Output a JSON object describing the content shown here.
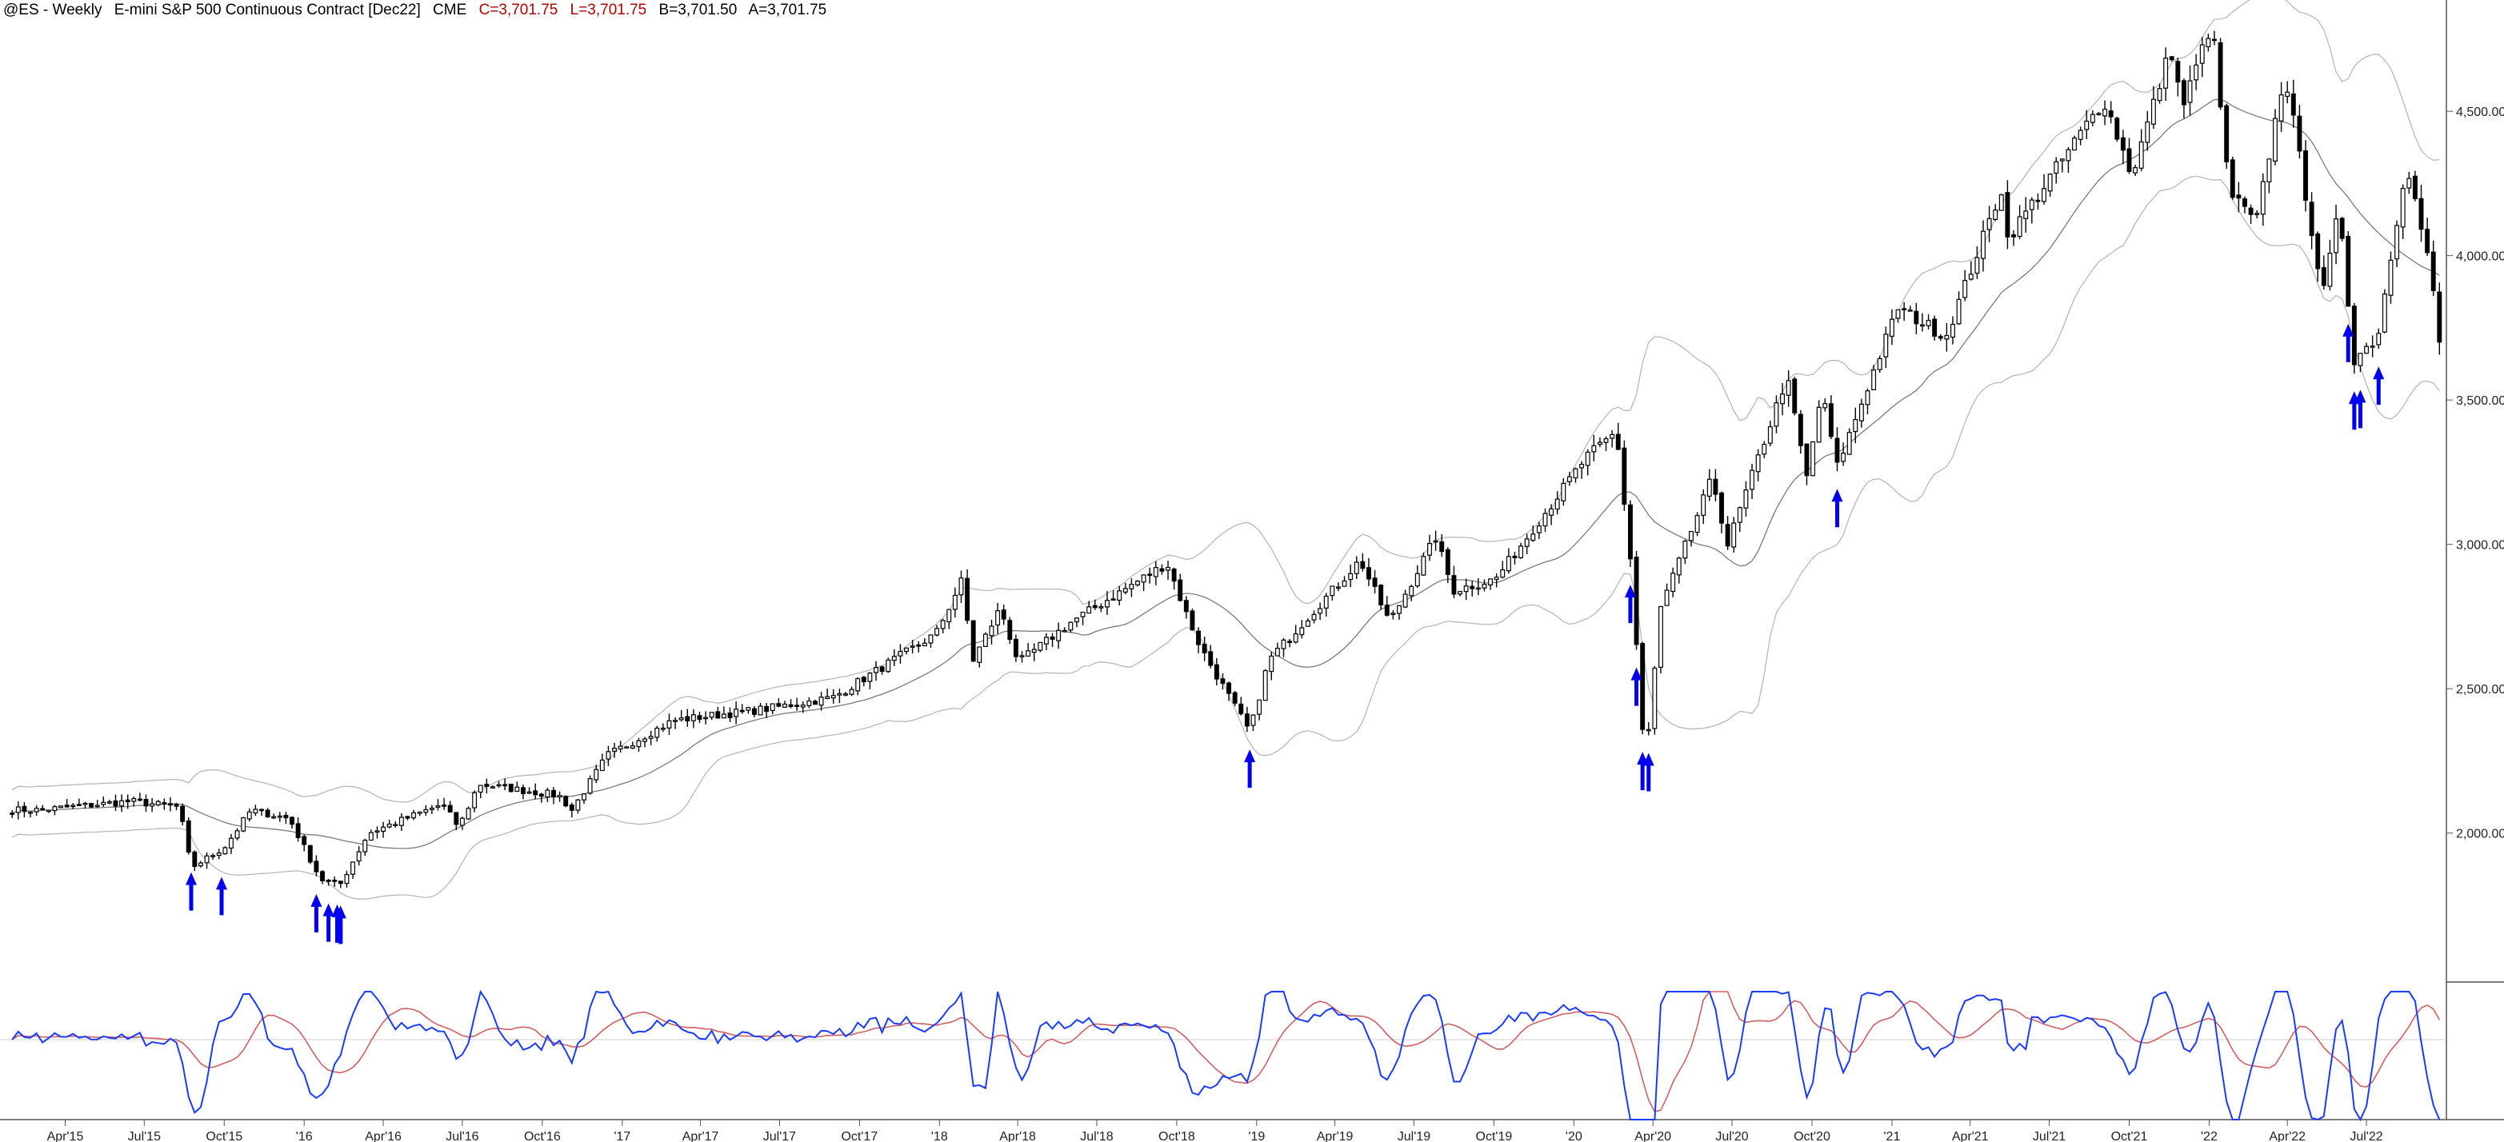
{
  "header": {
    "symbol": "@ES - Weekly",
    "name": "E-mini S&P 500 Continuous Contract [Dec22]",
    "exchange": "CME",
    "close": "C=3,701.75",
    "low": "L=3,701.75",
    "bid": "B=3,701.50",
    "ask": "A=3,701.75"
  },
  "colors": {
    "candle": "#000000",
    "band": "#b8b8b8",
    "ma": "#7a7a7a",
    "arrow": "#0000ee",
    "osc": "#1a3cff",
    "signal": "#d06060"
  },
  "chart_data": [
    {
      "type": "candlestick",
      "title": "",
      "y_axis": {
        "ticks": [
          "4,500.00",
          "4,000.00",
          "3,500.00",
          "3,000.00",
          "2,500.00",
          "2,000.00"
        ],
        "ylim": [
          1520,
          4830
        ],
        "position": "right"
      },
      "x_axis": {
        "ticks": [
          "Apr'15",
          "Jul'15",
          "Oct'15",
          "'16",
          "Apr'16",
          "Jul'16",
          "Oct'16",
          "'17",
          "Apr'17",
          "Jul'17",
          "Oct'17",
          "'18",
          "Apr'18",
          "Jul'18",
          "Oct'18",
          "'19",
          "Apr'19",
          "Jul'19",
          "Oct'19",
          "'20",
          "Apr'20",
          "Jul'20",
          "Oct'20",
          "'21",
          "Apr'21",
          "Jul'21",
          "Oct'21",
          "'22",
          "Apr'22",
          "Jul'22"
        ]
      },
      "price_path": [
        [
          "2015-03-01",
          2080
        ],
        [
          "2015-06-15",
          2110
        ],
        [
          "2015-08-10",
          2090
        ],
        [
          "2015-08-24",
          1880
        ],
        [
          "2015-10-01",
          1950
        ],
        [
          "2015-11-01",
          2080
        ],
        [
          "2015-12-15",
          2050
        ],
        [
          "2016-01-20",
          1840
        ],
        [
          "2016-02-11",
          1820
        ],
        [
          "2016-03-15",
          2000
        ],
        [
          "2016-06-08",
          2100
        ],
        [
          "2016-06-27",
          2020
        ],
        [
          "2016-07-20",
          2170
        ],
        [
          "2016-10-20",
          2130
        ],
        [
          "2016-11-04",
          2080
        ],
        [
          "2016-12-15",
          2270
        ],
        [
          "2017-03-01",
          2390
        ],
        [
          "2017-06-15",
          2430
        ],
        [
          "2017-09-01",
          2470
        ],
        [
          "2017-12-28",
          2690
        ],
        [
          "2018-01-26",
          2870
        ],
        [
          "2018-02-09",
          2600
        ],
        [
          "2018-03-12",
          2780
        ],
        [
          "2018-04-02",
          2590
        ],
        [
          "2018-06-01",
          2730
        ],
        [
          "2018-09-20",
          2935
        ],
        [
          "2018-10-12",
          2760
        ],
        [
          "2018-10-29",
          2640
        ],
        [
          "2018-12-24",
          2350
        ],
        [
          "2019-01-15",
          2600
        ],
        [
          "2019-04-30",
          2945
        ],
        [
          "2019-06-03",
          2730
        ],
        [
          "2019-07-26",
          3025
        ],
        [
          "2019-08-15",
          2840
        ],
        [
          "2019-10-03",
          2880
        ],
        [
          "2020-01-15",
          3300
        ],
        [
          "2020-02-19",
          3390
        ],
        [
          "2020-03-06",
          2950
        ],
        [
          "2020-03-23",
          2230
        ],
        [
          "2020-04-10",
          2780
        ],
        [
          "2020-06-08",
          3230
        ],
        [
          "2020-06-26",
          3000
        ],
        [
          "2020-09-02",
          3580
        ],
        [
          "2020-09-25",
          3230
        ],
        [
          "2020-10-12",
          3530
        ],
        [
          "2020-10-30",
          3270
        ],
        [
          "2021-01-08",
          3820
        ],
        [
          "2021-03-04",
          3720
        ],
        [
          "2021-05-07",
          4230
        ],
        [
          "2021-05-12",
          4050
        ],
        [
          "2021-09-02",
          4540
        ],
        [
          "2021-10-04",
          4280
        ],
        [
          "2021-11-18",
          4720
        ],
        [
          "2021-12-01",
          4510
        ],
        [
          "2022-01-04",
          4810
        ],
        [
          "2022-01-24",
          4220
        ],
        [
          "2022-02-24",
          4110
        ],
        [
          "2022-03-29",
          4640
        ],
        [
          "2022-05-12",
          3860
        ],
        [
          "2022-05-31",
          4170
        ],
        [
          "2022-06-16",
          3640
        ],
        [
          "2022-07-14",
          3720
        ],
        [
          "2022-08-16",
          4330
        ],
        [
          "2022-09-13",
          3940
        ],
        [
          "2022-09-23",
          3700
        ]
      ],
      "signal_arrows": [
        "2015-08-24",
        "2015-09-28",
        "2016-01-15",
        "2016-01-29",
        "2016-02-08",
        "2016-02-12",
        "2018-12-24",
        "2020-03-06",
        "2020-03-13",
        "2020-03-20",
        "2020-03-27",
        "2020-10-30",
        "2022-06-10",
        "2022-06-17",
        "2022-06-24",
        "2022-07-15"
      ]
    },
    {
      "type": "line",
      "title": "",
      "series": [
        {
          "color": "#1a3cff",
          "shape": "oscillator"
        },
        {
          "color": "#d06060",
          "shape": "signal"
        }
      ]
    }
  ]
}
